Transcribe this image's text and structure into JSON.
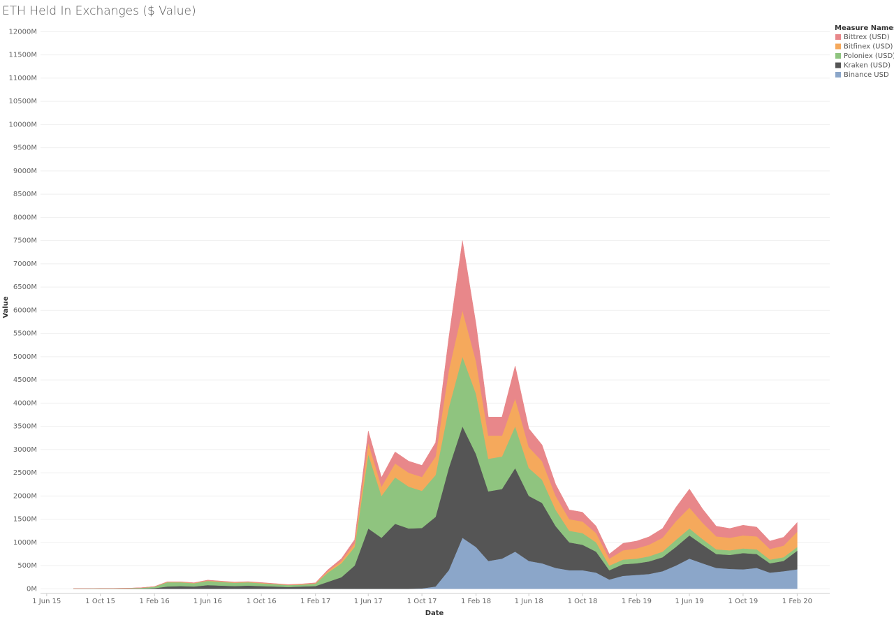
{
  "chart_data": {
    "type": "stacked-area",
    "title": "ETH Held In Exchanges ($ Value)",
    "x_label": "Date",
    "y_label": "Value",
    "legend_title": "Measure Names",
    "legend": "top-right",
    "grid": true,
    "x": [
      "2015-08-01",
      "2015-09-01",
      "2015-10-01",
      "2015-11-01",
      "2015-12-01",
      "2016-01-01",
      "2016-02-01",
      "2016-03-01",
      "2016-04-01",
      "2016-05-01",
      "2016-06-01",
      "2016-07-01",
      "2016-08-01",
      "2016-09-01",
      "2016-10-01",
      "2016-11-01",
      "2016-12-01",
      "2017-01-01",
      "2017-02-01",
      "2017-03-01",
      "2017-04-01",
      "2017-05-01",
      "2017-06-01",
      "2017-07-01",
      "2017-08-01",
      "2017-09-01",
      "2017-10-01",
      "2017-11-01",
      "2017-12-01",
      "2018-01-01",
      "2018-02-01",
      "2018-03-01",
      "2018-04-01",
      "2018-05-01",
      "2018-06-01",
      "2018-07-01",
      "2018-08-01",
      "2018-09-01",
      "2018-10-01",
      "2018-11-01",
      "2018-12-01",
      "2019-01-01",
      "2019-02-01",
      "2019-03-01",
      "2019-04-01",
      "2019-05-01",
      "2019-06-01",
      "2019-07-01",
      "2019-08-01",
      "2019-09-01",
      "2019-10-01",
      "2019-11-01",
      "2019-12-01",
      "2020-01-01",
      "2020-02-01"
    ],
    "series": [
      {
        "name": "Bittrex (USD)",
        "color": "#e8878a",
        "values": [
          0,
          0,
          0,
          0,
          0,
          1,
          2,
          5,
          5,
          5,
          8,
          8,
          8,
          8,
          8,
          6,
          6,
          8,
          10,
          30,
          50,
          80,
          250,
          200,
          250,
          250,
          250,
          300,
          700,
          1500,
          800,
          400,
          400,
          700,
          400,
          350,
          250,
          200,
          200,
          150,
          100,
          150,
          160,
          170,
          200,
          300,
          400,
          300,
          220,
          200,
          220,
          200,
          170,
          180,
          200
        ]
      },
      {
        "name": "Bitfinex (USD)",
        "color": "#f5a95c",
        "values": [
          1,
          1,
          1,
          1,
          1,
          2,
          3,
          8,
          8,
          7,
          10,
          10,
          8,
          8,
          8,
          8,
          6,
          8,
          10,
          30,
          50,
          80,
          250,
          200,
          300,
          300,
          300,
          400,
          800,
          1000,
          700,
          500,
          450,
          600,
          450,
          400,
          300,
          250,
          250,
          200,
          150,
          200,
          220,
          250,
          300,
          400,
          450,
          350,
          280,
          270,
          280,
          280,
          230,
          250,
          330
        ]
      },
      {
        "name": "Poloniex (USD)",
        "color": "#8fc47f",
        "values": [
          5,
          5,
          6,
          6,
          8,
          15,
          30,
          90,
          80,
          70,
          90,
          80,
          70,
          70,
          60,
          50,
          40,
          40,
          50,
          200,
          300,
          400,
          1600,
          900,
          1000,
          900,
          800,
          900,
          1300,
          1500,
          1300,
          700,
          700,
          900,
          600,
          500,
          350,
          250,
          250,
          200,
          100,
          100,
          100,
          110,
          120,
          150,
          150,
          120,
          100,
          100,
          100,
          100,
          80,
          80,
          80
        ]
      },
      {
        "name": "Kraken (USD)",
        "color": "#555555",
        "values": [
          2,
          3,
          3,
          3,
          4,
          6,
          15,
          50,
          60,
          50,
          80,
          70,
          60,
          70,
          60,
          50,
          40,
          50,
          60,
          150,
          250,
          500,
          1300,
          1100,
          1400,
          1300,
          1300,
          1500,
          2200,
          2400,
          2000,
          1500,
          1500,
          1800,
          1400,
          1300,
          900,
          600,
          550,
          450,
          200,
          250,
          250,
          270,
          300,
          400,
          500,
          400,
          300,
          300,
          350,
          300,
          200,
          220,
          400
        ]
      },
      {
        "name": "Binance USD",
        "color": "#8ba6c9",
        "values": [
          0,
          0,
          0,
          0,
          0,
          0,
          0,
          0,
          0,
          0,
          0,
          0,
          0,
          0,
          0,
          0,
          0,
          0,
          0,
          0,
          0,
          0,
          0,
          0,
          0,
          0,
          10,
          50,
          400,
          1100,
          900,
          600,
          650,
          800,
          600,
          550,
          450,
          400,
          400,
          350,
          200,
          280,
          300,
          320,
          380,
          500,
          650,
          550,
          450,
          430,
          420,
          450,
          350,
          380,
          420
        ]
      }
    ],
    "xlim": [
      "2015-05-18",
      "2020-04-15"
    ],
    "xticks": [
      {
        "value": "2015-06-01",
        "label": "1 Jun 15"
      },
      {
        "value": "2015-10-01",
        "label": "1 Oct 15"
      },
      {
        "value": "2016-02-01",
        "label": "1 Feb 16"
      },
      {
        "value": "2016-06-01",
        "label": "1 Jun 16"
      },
      {
        "value": "2016-10-01",
        "label": "1 Oct 16"
      },
      {
        "value": "2017-02-01",
        "label": "1 Feb 17"
      },
      {
        "value": "2017-06-01",
        "label": "1 Jun 17"
      },
      {
        "value": "2017-10-01",
        "label": "1 Oct 17"
      },
      {
        "value": "2018-02-01",
        "label": "1 Feb 18"
      },
      {
        "value": "2018-06-01",
        "label": "1 Jun 18"
      },
      {
        "value": "2018-10-01",
        "label": "1 Oct 18"
      },
      {
        "value": "2019-02-01",
        "label": "1 Feb 19"
      },
      {
        "value": "2019-06-01",
        "label": "1 Jun 19"
      },
      {
        "value": "2019-10-01",
        "label": "1 Oct 19"
      },
      {
        "value": "2020-02-01",
        "label": "1 Feb 20"
      }
    ],
    "ylim": [
      -100,
      12080
    ],
    "yticks": [
      {
        "value": 0,
        "label": "0M"
      },
      {
        "value": 500,
        "label": "500M"
      },
      {
        "value": 1000,
        "label": "1000M"
      },
      {
        "value": 1500,
        "label": "1500M"
      },
      {
        "value": 2000,
        "label": "2000M"
      },
      {
        "value": 2500,
        "label": "2500M"
      },
      {
        "value": 3000,
        "label": "3000M"
      },
      {
        "value": 3500,
        "label": "3500M"
      },
      {
        "value": 4000,
        "label": "4000M"
      },
      {
        "value": 4500,
        "label": "4500M"
      },
      {
        "value": 5000,
        "label": "5000M"
      },
      {
        "value": 5500,
        "label": "5500M"
      },
      {
        "value": 6000,
        "label": "6000M"
      },
      {
        "value": 6500,
        "label": "6500M"
      },
      {
        "value": 7000,
        "label": "7000M"
      },
      {
        "value": 7500,
        "label": "7500M"
      },
      {
        "value": 8000,
        "label": "8000M"
      },
      {
        "value": 8500,
        "label": "8500M"
      },
      {
        "value": 9000,
        "label": "9000M"
      },
      {
        "value": 9500,
        "label": "9500M"
      },
      {
        "value": 10000,
        "label": "10000M"
      },
      {
        "value": 10500,
        "label": "10500M"
      },
      {
        "value": 11000,
        "label": "11000M"
      },
      {
        "value": 11500,
        "label": "11500M"
      },
      {
        "value": 12000,
        "label": "12000M"
      }
    ]
  }
}
